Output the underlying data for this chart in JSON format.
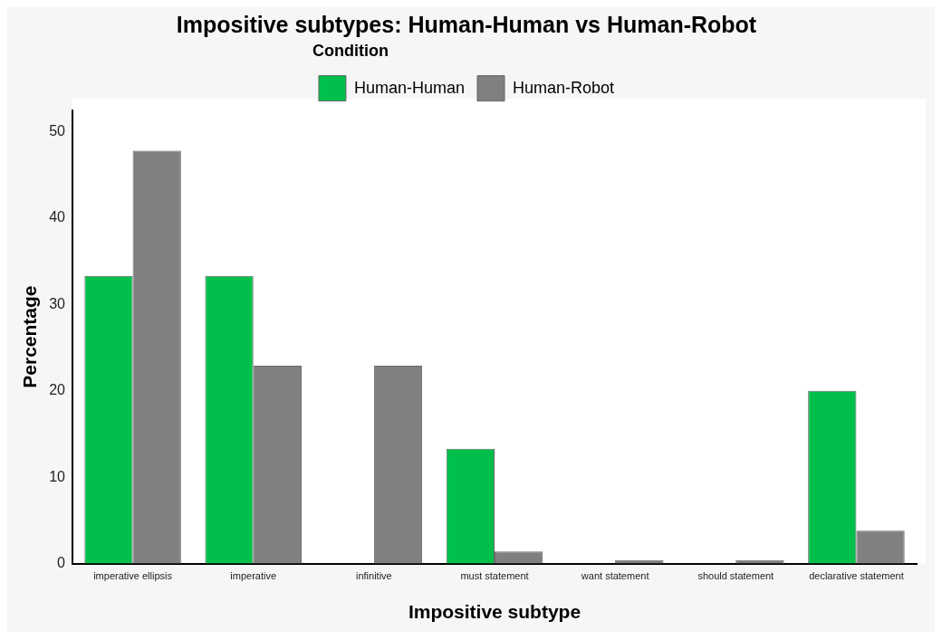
{
  "chart_data": {
    "type": "bar",
    "title": "Impositive subtypes: Human-Human vs Human-Robot",
    "legend_title": "Condition",
    "xlabel": "Impositive subtype",
    "ylabel": "Percentage",
    "categories": [
      "imperative ellipsis",
      "imperative",
      "infinitive",
      "must statement",
      "want statement",
      "should statement",
      "declarative statement"
    ],
    "series": [
      {
        "name": "Human-Human",
        "color": "#00c04b",
        "values": [
          33.3,
          33.3,
          null,
          13.3,
          null,
          null,
          20.0
        ]
      },
      {
        "name": "Human-Robot",
        "color": "#808080",
        "values": [
          47.8,
          22.9,
          22.9,
          1.4,
          0.4,
          0.4,
          3.8
        ]
      }
    ],
    "ylim": [
      0,
      52.5
    ],
    "yticks": [
      0,
      10,
      20,
      30,
      40,
      50
    ],
    "grid": false,
    "legend": "top"
  }
}
